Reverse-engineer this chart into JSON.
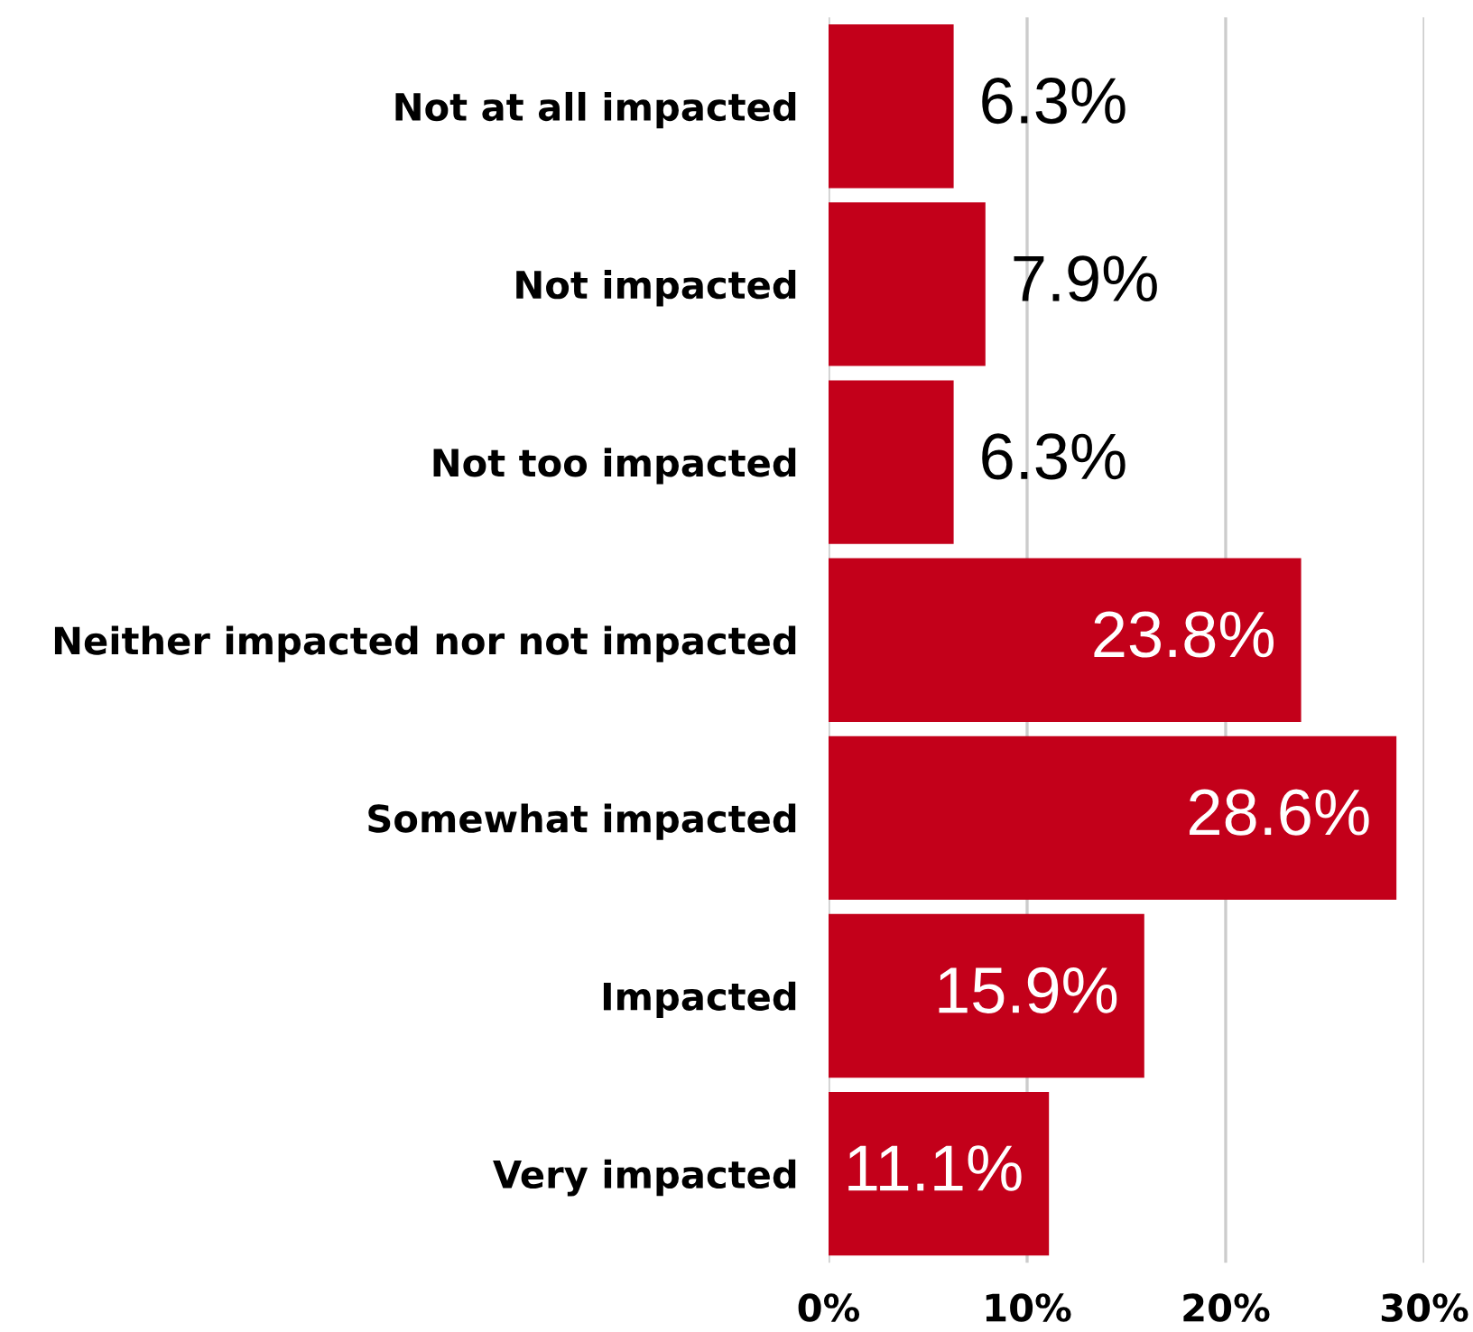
{
  "chart_data": {
    "type": "bar",
    "orientation": "horizontal",
    "categories": [
      "Not at all impacted",
      "Not impacted",
      "Not too impacted",
      "Neither impacted nor not impacted",
      "Somewhat impacted",
      "Impacted",
      "Very impacted"
    ],
    "values": [
      6.3,
      7.9,
      6.3,
      23.8,
      28.6,
      15.9,
      11.1
    ],
    "value_labels": [
      "6.3%",
      "7.9%",
      "6.3%",
      "23.8%",
      "28.6%",
      "15.9%",
      "11.1%"
    ],
    "color": "#c3001a",
    "xlim": [
      0,
      30
    ],
    "xticks": [
      {
        "value": 0,
        "label": "0%"
      },
      {
        "value": 10,
        "label": "10%"
      },
      {
        "value": 20,
        "label": "20%"
      },
      {
        "value": 30,
        "label": "30%"
      }
    ],
    "grid": "x"
  }
}
